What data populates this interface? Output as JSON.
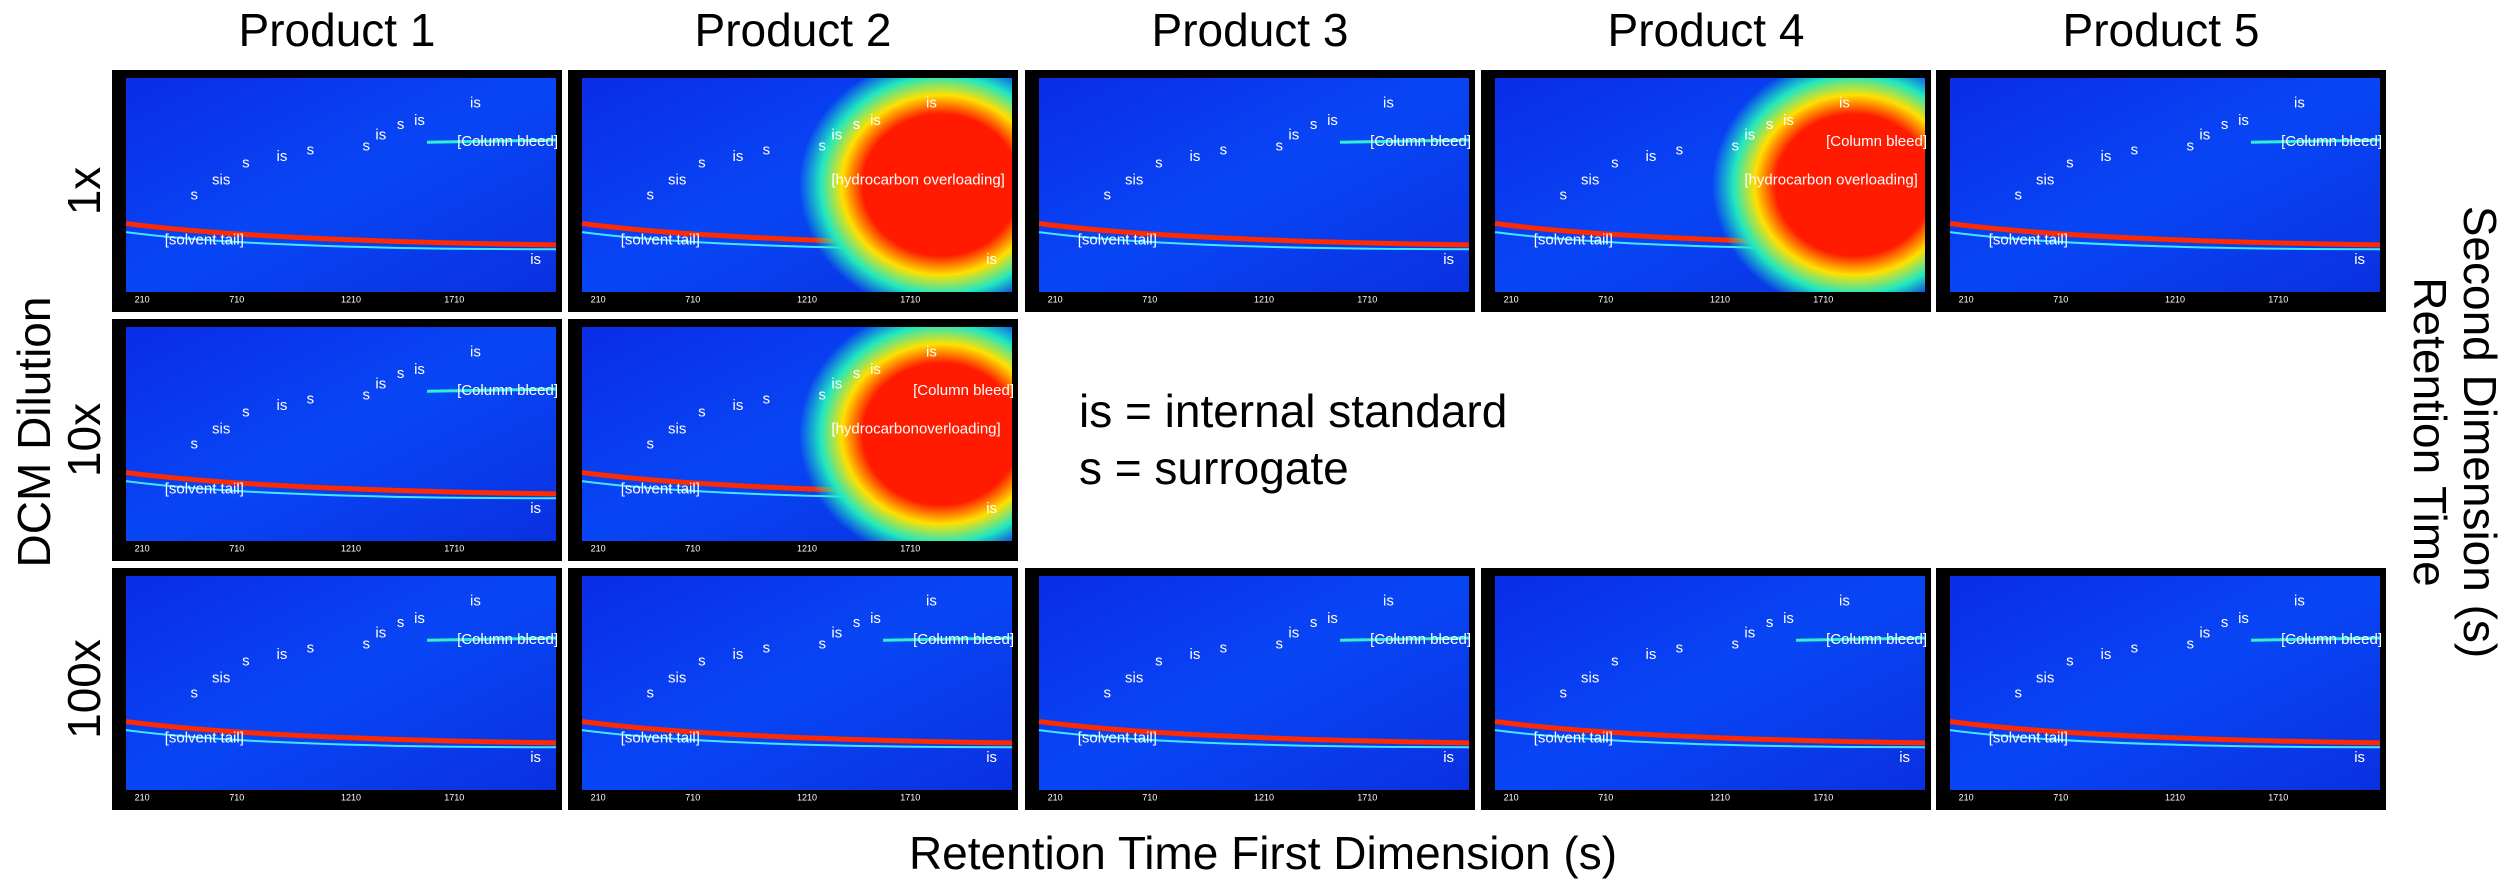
{
  "column_titles": [
    "Product 1",
    "Product 2",
    "Product 3",
    "Product 4",
    "Product 5"
  ],
  "row_labels": [
    "1x",
    "10x",
    "100x"
  ],
  "y_axis_title": "DCM Dilution",
  "right_axis_title": [
    "Retention Time",
    "Second Dimension (s)"
  ],
  "x_axis_title": "Retention Time First Dimension (s)",
  "legend": [
    "is = internal standard",
    "s = surrogate"
  ],
  "panel_x_ticks": [
    "210",
    "710",
    "1210",
    "1710"
  ],
  "panels": [
    [
      {
        "solvent_tail": "[solvent tail]",
        "column_bleed": "[Column bleed]",
        "is_top": "is",
        "is_bottom": "is",
        "marks": [
          "s",
          "sis",
          "s",
          "is",
          "s",
          "s",
          "is",
          "s",
          "is"
        ]
      },
      {
        "solvent_tail": "[solvent tail]",
        "overloading": "[hydrocarbon overloading]",
        "is_top": "is",
        "is_bottom": "is",
        "marks": [
          "s",
          "sis",
          "s",
          "is",
          "s",
          "s",
          "is",
          "s",
          "is"
        ]
      },
      {
        "solvent_tail": "[solvent tail]",
        "column_bleed": "[Column bleed]",
        "is_top": "is",
        "is_bottom": "is",
        "marks": [
          "s",
          "sis",
          "s",
          "is",
          "s",
          "s",
          "is",
          "s",
          "is"
        ]
      },
      {
        "solvent_tail": "[solvent tail]",
        "column_bleed": "[Column bleed]",
        "overloading": "[hydrocarbon overloading]",
        "is_top": "is",
        "marks": [
          "s",
          "sis",
          "s",
          "is",
          "s",
          "s",
          "is",
          "s",
          "is"
        ]
      },
      {
        "solvent_tail": "[solvent tail]",
        "column_bleed": "[Column bleed]",
        "is_top": "is",
        "is_bottom": "is",
        "marks": [
          "s",
          "sis",
          "s",
          "is",
          "s",
          "s",
          "is",
          "s",
          "is"
        ]
      }
    ],
    [
      {
        "solvent_tail": "[solvent tail]",
        "column_bleed": "[Column bleed]",
        "is_top": "is",
        "is_bottom": "is",
        "marks": [
          "s",
          "sis",
          "s",
          "is",
          "s",
          "s",
          "is",
          "s",
          "is"
        ]
      },
      {
        "solvent_tail": "[solvent tail]",
        "column_bleed": "[Column bleed]",
        "overloading": "[hydrocarbonoverloading]",
        "is_top": "is",
        "is_bottom": "is",
        "marks": [
          "s",
          "sis",
          "s",
          "is",
          "s",
          "s",
          "is",
          "s",
          "is"
        ]
      }
    ],
    [
      {
        "solvent_tail": "[solvent tail]",
        "column_bleed": "[Column bleed]",
        "is_top": "is",
        "is_bottom": "is",
        "marks": [
          "s",
          "sis",
          "s",
          "is",
          "s",
          "s",
          "is",
          "s",
          "is"
        ]
      },
      {
        "solvent_tail": "[solvent tail]",
        "column_bleed": "[Column bleed]",
        "is_top": "is",
        "is_bottom": "is",
        "marks": [
          "s",
          "sis",
          "s",
          "is",
          "s",
          "s",
          "is",
          "s",
          "is"
        ]
      },
      {
        "solvent_tail": "[solvent tail]",
        "column_bleed": "[Column bleed]",
        "is_top": "is",
        "is_bottom": "is",
        "marks": [
          "s",
          "sis",
          "s",
          "is",
          "s",
          "s",
          "is",
          "s",
          "is"
        ]
      },
      {
        "solvent_tail": "[solvent tail]",
        "column_bleed": "[Column bleed]",
        "is_top": "is",
        "is_bottom": "is",
        "marks": [
          "s",
          "sis",
          "s",
          "is",
          "s",
          "s",
          "is",
          "s",
          "is"
        ]
      },
      {
        "solvent_tail": "[solvent tail]",
        "column_bleed": "[Column bleed]",
        "is_top": "is",
        "is_bottom": "is",
        "marks": [
          "s",
          "sis",
          "s",
          "is",
          "s",
          "s",
          "is",
          "s",
          "is"
        ]
      }
    ]
  ]
}
